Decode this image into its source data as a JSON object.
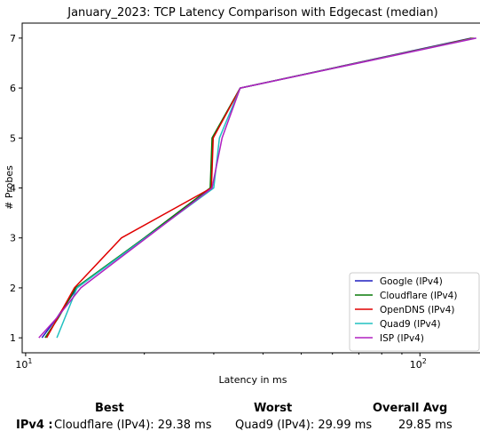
{
  "chart_data": {
    "type": "line",
    "title": "January_2023: TCP Latency Comparison with Edgecast (median)",
    "xlabel": "Latency in ms",
    "ylabel": "# Probes",
    "xscale": "log",
    "xlim": [
      9.8,
      145
    ],
    "ylim": [
      0.7,
      7.3
    ],
    "x_ticks": [
      {
        "value": 10,
        "base": "10",
        "exp": "1"
      },
      {
        "value": 100,
        "base": "10",
        "exp": "2"
      }
    ],
    "y_ticks": [
      1,
      2,
      3,
      4,
      5,
      6,
      7
    ],
    "grid": false,
    "legend_position": "lower right",
    "series": [
      {
        "name": "Google (IPv4)",
        "color": "#1f1fbf",
        "points": [
          [
            11.0,
            1
          ],
          [
            12.0,
            1.4
          ],
          [
            13.5,
            2
          ],
          [
            20.0,
            3
          ],
          [
            29.5,
            4
          ],
          [
            29.8,
            5
          ],
          [
            35.0,
            6
          ],
          [
            135.0,
            7
          ]
        ]
      },
      {
        "name": "Cloudflare (IPv4)",
        "color": "#0a7a0a",
        "points": [
          [
            11.2,
            1
          ],
          [
            12.1,
            1.4
          ],
          [
            13.4,
            2
          ],
          [
            20.0,
            3
          ],
          [
            29.38,
            4
          ],
          [
            29.7,
            5
          ],
          [
            35.0,
            6
          ],
          [
            136.0,
            7
          ]
        ]
      },
      {
        "name": "OpenDNS (IPv4)",
        "color": "#e00000",
        "points": [
          [
            11.3,
            1
          ],
          [
            13.3,
            2
          ],
          [
            17.5,
            3
          ],
          [
            29.6,
            4
          ],
          [
            29.9,
            5
          ],
          [
            35.0,
            6
          ],
          [
            137.0,
            7
          ]
        ]
      },
      {
        "name": "Quad9 (IPv4)",
        "color": "#20c0c0",
        "points": [
          [
            12.0,
            1
          ],
          [
            13.5,
            2
          ],
          [
            29.99,
            4
          ],
          [
            31.0,
            5
          ],
          [
            35.0,
            6
          ],
          [
            138.0,
            7
          ]
        ]
      },
      {
        "name": "ISP (IPv4)",
        "color": "#b020c0",
        "points": [
          [
            10.8,
            1
          ],
          [
            12.0,
            1.4
          ],
          [
            13.8,
            2
          ],
          [
            29.7,
            4
          ],
          [
            31.5,
            5
          ],
          [
            35.0,
            6
          ],
          [
            139.0,
            7
          ]
        ]
      }
    ]
  },
  "summary": {
    "best_header": "Best",
    "worst_header": "Worst",
    "avg_header": "Overall Avg",
    "row_label": "IPv4 :",
    "best_value": "Cloudflare (IPv4): 29.38 ms",
    "worst_value": "Quad9 (IPv4): 29.99 ms",
    "avg_value": "29.85 ms"
  }
}
